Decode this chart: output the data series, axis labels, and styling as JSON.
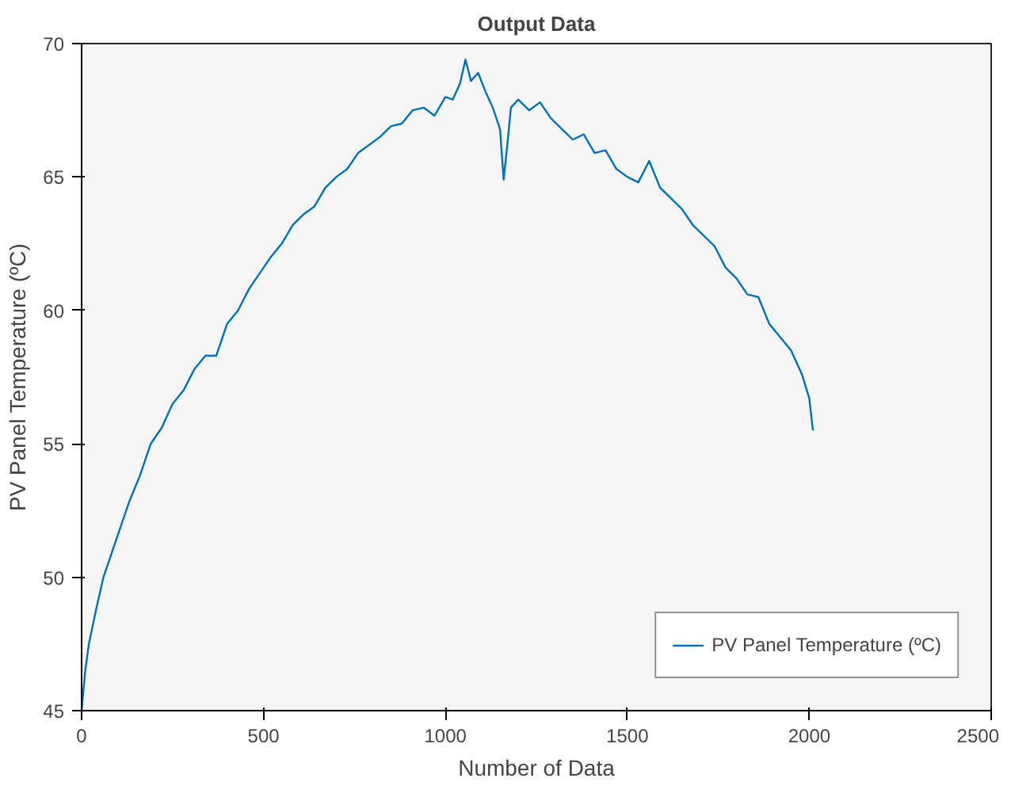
{
  "chart_data": {
    "type": "line",
    "title": "Output Data",
    "xlabel": "Number of Data",
    "ylabel": "PV Panel Temperature (ºC)",
    "xlim": [
      0,
      2500
    ],
    "ylim": [
      45,
      70
    ],
    "xticks": [
      0,
      500,
      1000,
      1500,
      2000,
      2500
    ],
    "yticks": [
      45,
      50,
      55,
      60,
      65,
      70
    ],
    "grid": false,
    "legend": "bottom right",
    "marker": "none",
    "line_style": "solid",
    "series": [
      {
        "name": "PV Panel Temperature (ºC)",
        "color": "#0072bd",
        "x": [
          0,
          10,
          20,
          40,
          60,
          80,
          100,
          130,
          160,
          190,
          220,
          250,
          280,
          310,
          340,
          370,
          400,
          430,
          460,
          490,
          520,
          550,
          580,
          610,
          640,
          670,
          700,
          730,
          760,
          790,
          820,
          850,
          880,
          910,
          940,
          970,
          1000,
          1020,
          1040,
          1055,
          1070,
          1090,
          1110,
          1130,
          1150,
          1160,
          1170,
          1180,
          1200,
          1230,
          1260,
          1290,
          1320,
          1350,
          1380,
          1410,
          1440,
          1470,
          1500,
          1530,
          1560,
          1590,
          1620,
          1650,
          1680,
          1710,
          1740,
          1770,
          1800,
          1830,
          1860,
          1890,
          1920,
          1950,
          1980,
          2000,
          2010
        ],
        "values": [
          45,
          46.5,
          47.5,
          48.8,
          50,
          50.8,
          51.6,
          52.8,
          53.8,
          55,
          55.6,
          56.5,
          57,
          57.8,
          58.3,
          58.3,
          59.5,
          60,
          60.8,
          61.4,
          62,
          62.5,
          63.2,
          63.6,
          63.9,
          64.6,
          65,
          65.3,
          65.9,
          66.2,
          66.5,
          66.9,
          67,
          67.5,
          67.6,
          67.3,
          68,
          67.9,
          68.5,
          69.4,
          68.6,
          68.9,
          68.2,
          67.6,
          66.8,
          64.9,
          66.2,
          67.6,
          67.9,
          67.5,
          67.8,
          67.2,
          66.8,
          66.4,
          66.6,
          65.9,
          66,
          65.3,
          65,
          64.8,
          65.6,
          64.6,
          64.2,
          63.8,
          63.2,
          62.8,
          62.4,
          61.6,
          61.2,
          60.6,
          60.5,
          59.5,
          59,
          58.5,
          57.6,
          56.7,
          55.5
        ]
      }
    ]
  }
}
